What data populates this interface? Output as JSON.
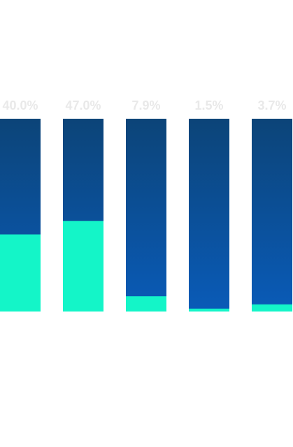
{
  "chart_data": {
    "type": "bar",
    "stacked": "percent",
    "categories": [
      "",
      "",
      "",
      "",
      ""
    ],
    "values": [
      40.0,
      47.0,
      7.9,
      1.5,
      3.7
    ],
    "labels": [
      "40.0%",
      "47.0%",
      "7.9%",
      "1.5%",
      "3.7%"
    ],
    "ylim": [
      0,
      100
    ],
    "unit": "%",
    "title": "",
    "xlabel": "",
    "ylabel": "",
    "grid": false,
    "legend": "none"
  },
  "colors": {
    "fill": "#14f5c8",
    "track_top": "#0c4478",
    "track_bottom": "#0a5bb8",
    "label": "#e9e9e9"
  }
}
